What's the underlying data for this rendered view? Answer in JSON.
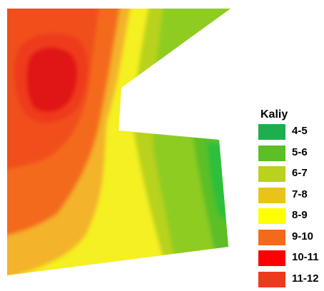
{
  "legend": {
    "title": "Kaliy",
    "classes": [
      {
        "label": "4-5",
        "color": "#1fae4e"
      },
      {
        "label": "5-6",
        "color": "#5cbf28"
      },
      {
        "label": "6-7",
        "color": "#b9d21d"
      },
      {
        "label": "7-8",
        "color": "#e9c418"
      },
      {
        "label": "8-9",
        "color": "#ffff00"
      },
      {
        "label": "9-10",
        "color": "#f46a1a"
      },
      {
        "label": "10-11",
        "color": "#ff0000"
      },
      {
        "label": "11-12",
        "color": "#ed3a1c"
      }
    ]
  }
}
